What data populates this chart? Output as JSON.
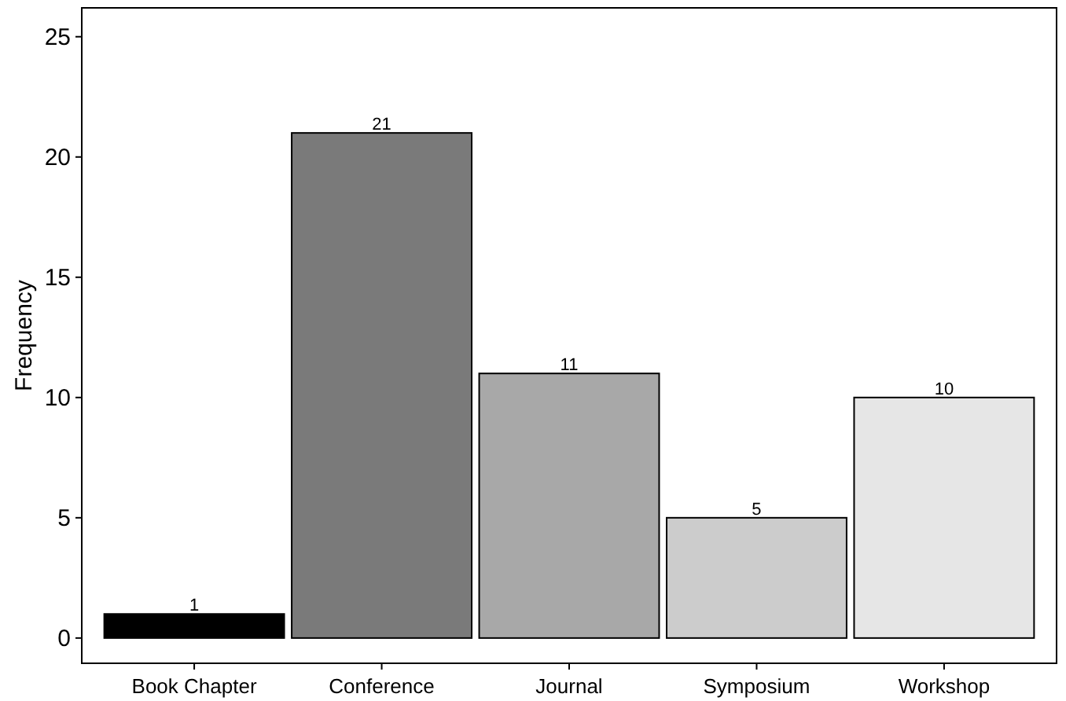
{
  "chart_data": {
    "type": "bar",
    "ylabel": "Frequency",
    "categories": [
      "Book Chapter",
      "Conference",
      "Journal",
      "Symposium",
      "Workshop"
    ],
    "values": [
      1,
      21,
      11,
      5,
      10
    ],
    "colors": [
      "#000000",
      "#7a7a7a",
      "#a8a8a8",
      "#cccccc",
      "#e6e6e6"
    ],
    "ylim": [
      -1.05,
      26.2
    ],
    "yticks": [
      0,
      5,
      10,
      15,
      20,
      25
    ],
    "data_labels": true,
    "grid": false
  }
}
